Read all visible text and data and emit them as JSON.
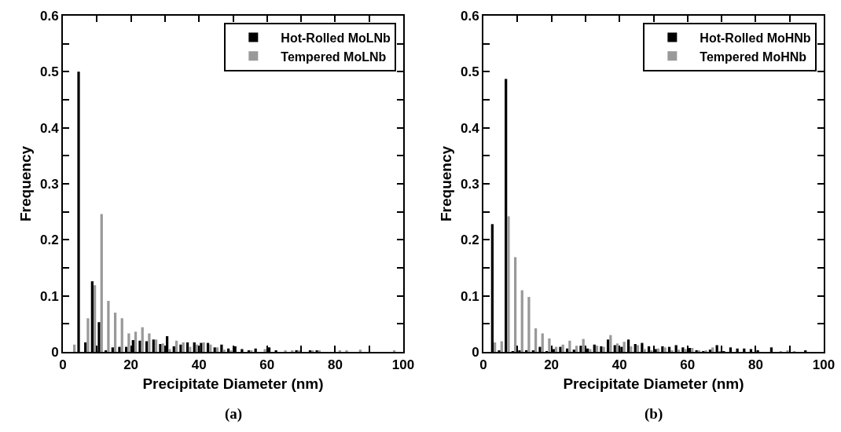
{
  "chart_data": [
    {
      "type": "bar",
      "xlabel": "Precipitate Diameter (nm)",
      "ylabel": "Frequency",
      "annotations": [
        "(a)"
      ],
      "x": [
        1,
        3,
        5,
        7,
        9,
        11,
        13,
        15,
        17,
        19,
        21,
        23,
        25,
        27,
        29,
        31,
        33,
        35,
        37,
        39,
        41,
        43,
        45,
        47,
        49,
        51,
        53,
        55,
        57,
        59,
        61,
        63,
        65,
        67,
        69,
        71,
        73,
        75,
        77,
        79,
        81,
        83,
        85,
        87,
        89,
        91,
        93,
        95,
        97,
        99
      ],
      "series": [
        {
          "name": "Hot-Rolled MoLNb",
          "color": "#000000",
          "values": [
            0,
            0,
            0.5,
            0.017,
            0.126,
            0.053,
            0.002,
            0.008,
            0.009,
            0.009,
            0.021,
            0.02,
            0.019,
            0.022,
            0.014,
            0.028,
            0.01,
            0.013,
            0.017,
            0.017,
            0.016,
            0.016,
            0.008,
            0.013,
            0.006,
            0.01,
            0.005,
            0.002,
            0.006,
            0,
            0.008,
            0.002,
            0,
            0,
            0.003,
            0,
            0.002,
            0.002,
            0,
            0,
            0,
            0,
            0,
            0,
            0,
            0,
            0,
            0,
            0,
            0
          ]
        },
        {
          "name": "Tempered MoLNb",
          "color": "#999999",
          "values": [
            0,
            0.013,
            0,
            0.06,
            0.119,
            0.246,
            0.091,
            0.07,
            0.06,
            0.033,
            0.036,
            0.044,
            0.033,
            0.022,
            0.015,
            0.005,
            0.02,
            0.017,
            0.009,
            0.013,
            0.017,
            0.013,
            0.008,
            0.004,
            0.002,
            0,
            0,
            0.003,
            0,
            0.005,
            0,
            0,
            0.002,
            0.002,
            0.002,
            0,
            0.002,
            0.002,
            0,
            0,
            0.003,
            0.002,
            0,
            0.004,
            0,
            0,
            0,
            0,
            0.002,
            0
          ]
        }
      ],
      "xlim": [
        0,
        100
      ],
      "xticks": [
        0,
        {
          "value": 10,
          "label": null
        },
        20,
        {
          "value": 30,
          "label": null
        },
        40,
        {
          "value": 50,
          "label": null
        },
        60,
        {
          "value": 70,
          "label": null
        },
        80,
        {
          "value": 90,
          "label": null
        },
        100
      ],
      "ylim": [
        0,
        0.6
      ],
      "yticks": [
        0,
        {
          "value": 0.05,
          "label": null
        },
        0.1,
        {
          "value": 0.15,
          "label": null
        },
        0.2,
        {
          "value": 0.25,
          "label": null
        },
        0.3,
        {
          "value": 0.35,
          "label": null
        },
        0.4,
        {
          "value": 0.45,
          "label": null
        },
        0.5,
        {
          "value": 0.55,
          "label": null
        },
        0.6
      ],
      "grid": false,
      "legend": "top right"
    },
    {
      "type": "bar",
      "xlabel": "Precipitate Diameter (nm)",
      "ylabel": "Frequency",
      "annotations": [
        "(b)"
      ],
      "x": [
        1,
        3,
        5,
        7,
        9,
        11,
        13,
        15,
        17,
        19,
        21,
        23,
        25,
        27,
        29,
        31,
        33,
        35,
        37,
        39,
        41,
        43,
        45,
        47,
        49,
        51,
        53,
        55,
        57,
        59,
        61,
        63,
        65,
        67,
        69,
        71,
        73,
        75,
        77,
        79,
        81,
        83,
        85,
        87,
        89,
        91,
        93,
        95,
        97,
        99
      ],
      "series": [
        {
          "name": "Hot-Rolled MoHNb",
          "color": "#000000",
          "values": [
            0,
            0.228,
            0.002,
            0.487,
            0.001,
            0.002,
            0.003,
            0.002,
            0.009,
            0.001,
            0.005,
            0.009,
            0.006,
            0.004,
            0.011,
            0.006,
            0.013,
            0.01,
            0.022,
            0.012,
            0.009,
            0.022,
            0.014,
            0.016,
            0.01,
            0.005,
            0.01,
            0.009,
            0.012,
            0.008,
            0.007,
            0.003,
            0.001,
            0.004,
            0.012,
            0.001,
            0.008,
            0.006,
            0.006,
            0.005,
            0.003,
            0,
            0.008,
            0,
            0,
            0,
            0,
            0.002,
            0,
            0
          ]
        },
        {
          "name": "Tempered MoHNb",
          "color": "#999999",
          "values": [
            0,
            0.017,
            0.019,
            0.242,
            0.169,
            0.11,
            0.098,
            0.042,
            0.033,
            0.024,
            0.009,
            0.013,
            0.02,
            0.011,
            0.023,
            0.005,
            0.011,
            0.009,
            0.03,
            0.015,
            0.018,
            0.01,
            0.012,
            0.005,
            0.003,
            0.006,
            0.008,
            0.003,
            0.004,
            0.005,
            0.007,
            0.002,
            0.002,
            0.008,
            0.001,
            0,
            0,
            0,
            0,
            0,
            0,
            0,
            0,
            0.001,
            0.002,
            0.001,
            0,
            0,
            0,
            0
          ]
        }
      ],
      "xlim": [
        0,
        100
      ],
      "xticks": [
        0,
        {
          "value": 10,
          "label": null
        },
        20,
        {
          "value": 30,
          "label": null
        },
        40,
        {
          "value": 50,
          "label": null
        },
        60,
        {
          "value": 70,
          "label": null
        },
        80,
        {
          "value": 90,
          "label": null
        },
        100
      ],
      "ylim": [
        0,
        0.6
      ],
      "yticks": [
        0,
        {
          "value": 0.05,
          "label": null
        },
        0.1,
        {
          "value": 0.15,
          "label": null
        },
        0.2,
        {
          "value": 0.25,
          "label": null
        },
        0.3,
        {
          "value": 0.35,
          "label": null
        },
        0.4,
        {
          "value": 0.45,
          "label": null
        },
        0.5,
        {
          "value": 0.55,
          "label": null
        },
        0.6
      ],
      "grid": false,
      "legend": "top right"
    }
  ]
}
